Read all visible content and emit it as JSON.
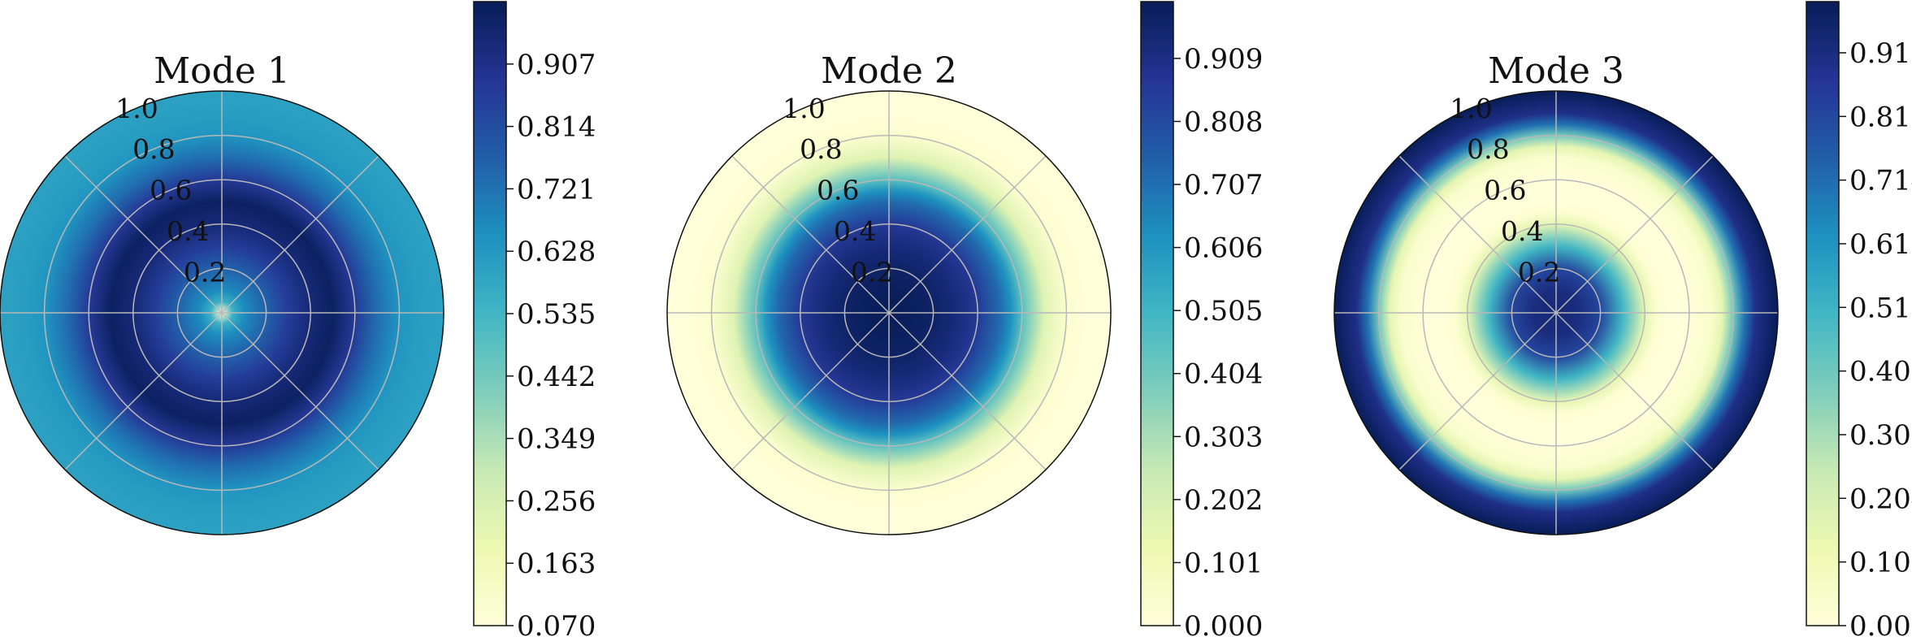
{
  "chart_data": [
    {
      "type": "heatmap",
      "subtype": "polar",
      "title": "Mode 1",
      "radial_tick_labels": [
        "0.2",
        "0.4",
        "0.6",
        "0.8",
        "1.0"
      ],
      "radial_ticks": [
        0.2,
        0.4,
        0.6,
        0.8,
        1.0
      ],
      "angular_gridlines_deg": [
        0,
        45,
        90,
        135,
        180,
        225,
        270,
        315
      ],
      "profile": {
        "r": [
          0.0,
          0.05,
          0.1,
          0.2,
          0.3,
          0.4,
          0.5,
          0.6,
          0.7,
          0.8,
          0.9,
          1.0
        ],
        "value": [
          0.07,
          0.55,
          0.66,
          0.76,
          0.86,
          0.94,
          0.98,
          0.87,
          0.73,
          0.64,
          0.61,
          0.6
        ]
      },
      "colorbar": {
        "colormap": "YlGnBu",
        "vmin": 0.07,
        "vmax": 1.0,
        "tick_values": [
          0.07,
          0.163,
          0.256,
          0.349,
          0.442,
          0.535,
          0.628,
          0.721,
          0.814,
          0.907
        ],
        "tick_labels": [
          "0.070",
          "0.163",
          "0.256",
          "0.349",
          "0.442",
          "0.535",
          "0.628",
          "0.721",
          "0.814",
          "0.907"
        ]
      },
      "grid": true
    },
    {
      "type": "heatmap",
      "subtype": "polar",
      "title": "Mode 2",
      "radial_tick_labels": [
        "0.2",
        "0.4",
        "0.6",
        "0.8",
        "1.0"
      ],
      "radial_ticks": [
        0.2,
        0.4,
        0.6,
        0.8,
        1.0
      ],
      "angular_gridlines_deg": [
        0,
        45,
        90,
        135,
        180,
        225,
        270,
        315
      ],
      "profile": {
        "r": [
          0.0,
          0.1,
          0.2,
          0.3,
          0.4,
          0.5,
          0.55,
          0.6,
          0.7,
          0.8,
          0.9,
          1.0
        ],
        "value": [
          1.0,
          0.99,
          0.97,
          0.93,
          0.86,
          0.72,
          0.62,
          0.45,
          0.17,
          0.03,
          0.0,
          0.0
        ]
      },
      "colorbar": {
        "colormap": "YlGnBu",
        "vmin": 0.0,
        "vmax": 1.0,
        "tick_values": [
          0.0,
          0.101,
          0.202,
          0.303,
          0.404,
          0.505,
          0.606,
          0.707,
          0.808,
          0.909
        ],
        "tick_labels": [
          "0.000",
          "0.101",
          "0.202",
          "0.303",
          "0.404",
          "0.505",
          "0.606",
          "0.707",
          "0.808",
          "0.909"
        ]
      },
      "grid": true
    },
    {
      "type": "heatmap",
      "subtype": "polar",
      "title": "Mode 3",
      "radial_tick_labels": [
        "0.2",
        "0.4",
        "0.6",
        "0.8",
        "1.0"
      ],
      "radial_ticks": [
        0.2,
        0.4,
        0.6,
        0.8,
        1.0
      ],
      "angular_gridlines_deg": [
        0,
        45,
        90,
        135,
        180,
        225,
        270,
        315
      ],
      "profile": {
        "r": [
          0.0,
          0.1,
          0.2,
          0.3,
          0.4,
          0.45,
          0.5,
          0.6,
          0.7,
          0.75,
          0.8,
          0.85,
          0.9,
          1.0
        ],
        "value": [
          0.94,
          0.92,
          0.82,
          0.5,
          0.15,
          0.03,
          0.0,
          0.0,
          0.04,
          0.15,
          0.4,
          0.7,
          0.9,
          1.0
        ]
      },
      "colorbar": {
        "colormap": "YlGnBu",
        "vmin": 0.0,
        "vmax": 1.0,
        "tick_values": [
          0.0,
          0.102,
          0.204,
          0.306,
          0.408,
          0.51,
          0.612,
          0.714,
          0.816,
          0.918
        ],
        "tick_labels": [
          "0.000",
          "0.102",
          "0.204",
          "0.306",
          "0.408",
          "0.510",
          "0.612",
          "0.714",
          "0.816",
          "0.918"
        ]
      },
      "grid": true
    }
  ],
  "colormap_stops": [
    "#ffffd9",
    "#edf8b1",
    "#c7e9b4",
    "#7fcdbb",
    "#41b6c4",
    "#1d91c0",
    "#225ea8",
    "#253494",
    "#081d58"
  ]
}
